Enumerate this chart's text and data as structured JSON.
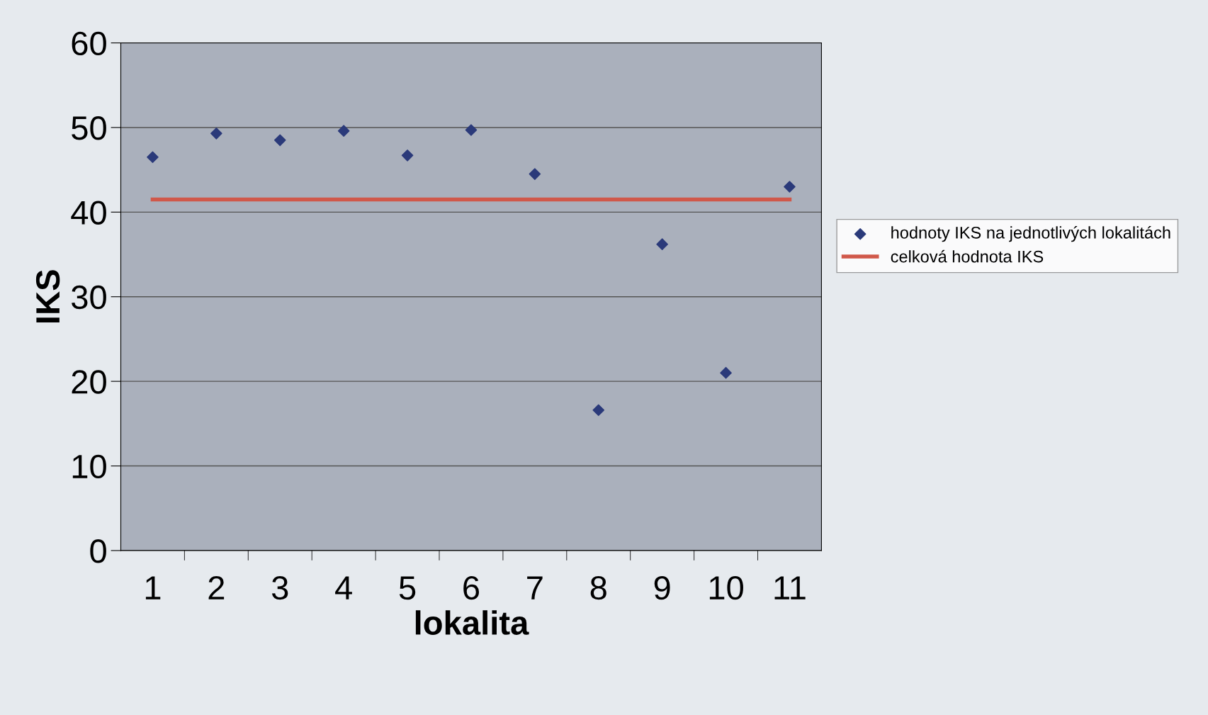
{
  "chart_data": {
    "type": "scatter",
    "xlabel": "lokalita",
    "ylabel": "IKS",
    "categories": [
      "1",
      "2",
      "3",
      "4",
      "5",
      "6",
      "7",
      "8",
      "9",
      "10",
      "11"
    ],
    "series": [
      {
        "name": "hodnoty IKS na jednotlivých lokalitách",
        "color": "#2b3a7a",
        "marker": "diamond",
        "values": [
          46.5,
          49.3,
          48.5,
          49.6,
          46.7,
          49.7,
          44.5,
          16.6,
          36.2,
          21.0,
          43.0
        ]
      },
      {
        "name": "celková hodnota IKS",
        "type": "line",
        "color": "#d0584a",
        "marker": "none",
        "line_style": "solid",
        "values": [
          41.5,
          41.5,
          41.5,
          41.5,
          41.5,
          41.5,
          41.5,
          41.5,
          41.5,
          41.5,
          41.5
        ]
      }
    ],
    "ylim": [
      0,
      60
    ],
    "yticks": [
      0,
      10,
      20,
      30,
      40,
      50,
      60
    ],
    "grid": "y",
    "legend": "right"
  }
}
